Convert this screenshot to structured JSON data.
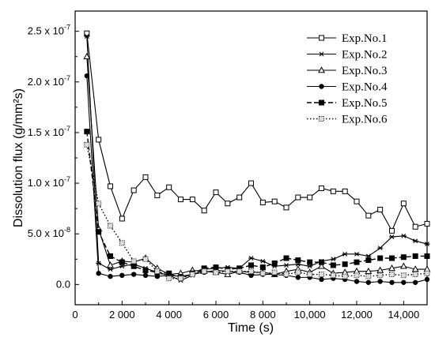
{
  "chart_data": {
    "type": "line",
    "xlabel": "Time (s)",
    "ylabel": "Dissolution flux (g/mm²s)",
    "xlim": [
      0,
      15000
    ],
    "ylim": [
      -2e-08,
      2.7e-07
    ],
    "x_ticks": [
      {
        "value": 0,
        "label": "0"
      },
      {
        "value": 2000,
        "label": "2 000"
      },
      {
        "value": 4000,
        "label": "4 000"
      },
      {
        "value": 6000,
        "label": "6 000"
      },
      {
        "value": 8000,
        "label": "8 000"
      },
      {
        "value": 10000,
        "label": "10,000"
      },
      {
        "value": 12000,
        "label": "12,000"
      },
      {
        "value": 14000,
        "label": "14,000"
      }
    ],
    "y_ticks": [
      {
        "value": 0,
        "mantissa": "0.0",
        "exp": ""
      },
      {
        "value": 5e-08,
        "mantissa": "5.0 x 10",
        "exp": "-8"
      },
      {
        "value": 1e-07,
        "mantissa": "1.0 x 10",
        "exp": "-7"
      },
      {
        "value": 1.5e-07,
        "mantissa": "1.5 x 10",
        "exp": "-7"
      },
      {
        "value": 2e-07,
        "mantissa": "2.0 x 10",
        "exp": "-7"
      },
      {
        "value": 2.5e-07,
        "mantissa": "2.5 x 10",
        "exp": "-7"
      }
    ],
    "grid": false,
    "legend_position": "top-right",
    "series": [
      {
        "name": "Exp.No.1",
        "marker": "open-square",
        "line": "solid",
        "x": [
          500,
          1000,
          1500,
          2000,
          2500,
          3000,
          3500,
          4000,
          4500,
          5000,
          5500,
          6000,
          6500,
          7000,
          7500,
          8000,
          8500,
          9000,
          9500,
          10000,
          10500,
          11000,
          11500,
          12000,
          12500,
          13000,
          13500,
          14000,
          14500,
          15000
        ],
        "y": [
          2.48e-07,
          1.43e-07,
          9.7e-08,
          6.5e-08,
          9.3e-08,
          1.06e-07,
          8.8e-08,
          9.6e-08,
          8.4e-08,
          8.4e-08,
          7.3e-08,
          9.1e-08,
          8e-08,
          8.6e-08,
          1e-07,
          8.1e-08,
          8.2e-08,
          7.6e-08,
          8.6e-08,
          8.6e-08,
          9.5e-08,
          9.2e-08,
          9.2e-08,
          8.2e-08,
          6.8e-08,
          7.4e-08,
          5.3e-08,
          8e-08,
          5.7e-08,
          6e-08
        ]
      },
      {
        "name": "Exp.No.2",
        "marker": "asterisk",
        "line": "solid",
        "x": [
          500,
          1000,
          1500,
          2000,
          2500,
          3000,
          3500,
          4000,
          4500,
          5000,
          5500,
          6000,
          6500,
          7000,
          7500,
          8000,
          8500,
          9000,
          9500,
          10000,
          10500,
          11000,
          11500,
          12000,
          12500,
          13000,
          13500,
          14000,
          14500,
          15000
        ],
        "y": [
          2.45e-07,
          2.1e-08,
          1.5e-08,
          1.8e-08,
          2e-08,
          1.6e-08,
          1.2e-08,
          9e-09,
          4e-09,
          9e-09,
          1.5e-08,
          1.6e-08,
          1.7e-08,
          1.6e-08,
          2.6e-08,
          2.3e-08,
          1.8e-08,
          1.9e-08,
          2e-08,
          1.8e-08,
          2.3e-08,
          2.5e-08,
          3e-08,
          3e-08,
          2.8e-08,
          3.6e-08,
          4.7e-08,
          4.8e-08,
          4.3e-08,
          4e-08
        ]
      },
      {
        "name": "Exp.No.3",
        "marker": "open-triangle",
        "line": "solid",
        "x": [
          500,
          1000,
          1500,
          2000,
          2500,
          3000,
          3500,
          4000,
          4500,
          5000,
          5500,
          6000,
          6500,
          7000,
          7500,
          8000,
          8500,
          9000,
          9500,
          10000,
          10500,
          11000,
          11500,
          12000,
          12500,
          13000,
          13500,
          14000,
          14500,
          15000
        ],
        "y": [
          2.25e-07,
          5.5e-08,
          1.9e-08,
          2.3e-08,
          2.2e-08,
          2.6e-08,
          1.6e-08,
          1e-08,
          1.1e-08,
          1.4e-08,
          1.3e-08,
          1.2e-08,
          1e-08,
          1.3e-08,
          1.2e-08,
          1.2e-08,
          1e-08,
          1.3e-08,
          1.5e-08,
          1.2e-08,
          1.8e-08,
          1.1e-08,
          1.2e-08,
          1.3e-08,
          1.3e-08,
          1.4e-08,
          1.6e-08,
          1.8e-08,
          1.5e-08,
          1.5e-08
        ]
      },
      {
        "name": "Exp.No.4",
        "marker": "filled-circle",
        "line": "solid",
        "x": [
          500,
          1000,
          1500,
          2000,
          2500,
          3000,
          3500,
          4000,
          4500,
          5000,
          5500,
          6000,
          6500,
          7000,
          7500,
          8000,
          8500,
          9000,
          9500,
          10000,
          10500,
          11000,
          11500,
          12000,
          12500,
          13000,
          13500,
          14000,
          14500,
          15000
        ],
        "y": [
          2.06e-07,
          1.1e-08,
          8e-09,
          9e-09,
          1e-08,
          9e-09,
          8e-09,
          9e-09,
          8e-09,
          1e-08,
          1.2e-08,
          1.4e-08,
          1.3e-08,
          1.2e-08,
          9e-09,
          1e-08,
          1e-08,
          9e-09,
          7e-09,
          7e-09,
          5e-09,
          6e-09,
          5e-09,
          3e-09,
          2e-09,
          3e-09,
          2e-09,
          2e-09,
          2e-09,
          5e-09
        ]
      },
      {
        "name": "Exp.No.5",
        "marker": "filled-square",
        "line": "dashed",
        "x": [
          500,
          1000,
          1500,
          2000,
          2500,
          3000,
          3500,
          4000,
          4500,
          5000,
          5500,
          6000,
          6500,
          7000,
          7500,
          8000,
          8500,
          9000,
          9500,
          10000,
          10500,
          11000,
          11500,
          12000,
          12500,
          13000,
          13500,
          14000,
          14500,
          15000
        ],
        "y": [
          1.51e-07,
          5.2e-08,
          2.8e-08,
          2.2e-08,
          1.8e-08,
          1.4e-08,
          1.2e-08,
          1.1e-08,
          6e-09,
          1.1e-08,
          1.6e-08,
          1.7e-08,
          1.5e-08,
          1.6e-08,
          1.9e-08,
          1.7e-08,
          2.1e-08,
          2.6e-08,
          2.4e-08,
          2.2e-08,
          2.2e-08,
          1.9e-08,
          2e-08,
          2.2e-08,
          2.4e-08,
          2.6e-08,
          2.6e-08,
          2.7e-08,
          2.8e-08,
          2.8e-08
        ]
      },
      {
        "name": "Exp.No.6",
        "marker": "dotted-square",
        "line": "dotted",
        "x": [
          500,
          1000,
          1500,
          2000,
          2500,
          3000,
          3500,
          4000,
          4500,
          5000,
          5500,
          6000,
          6500,
          7000,
          7500,
          8000,
          8500,
          9000,
          9500,
          10000,
          10500,
          11000,
          11500,
          12000,
          12500,
          13000,
          13500,
          14000,
          14500,
          15000
        ],
        "y": [
          1.38e-07,
          8e-08,
          5.8e-08,
          4.1e-08,
          2.3e-08,
          2.5e-08,
          1.3e-08,
          6e-09,
          6e-09,
          1e-08,
          1.3e-08,
          1.2e-08,
          1.3e-08,
          1.3e-08,
          1.3e-08,
          1.1e-08,
          1.2e-08,
          1e-08,
          1.2e-08,
          1e-08,
          1e-08,
          9e-09,
          8e-09,
          9e-09,
          8e-09,
          9e-09,
          1e-08,
          9e-09,
          1e-08,
          1.1e-08
        ]
      }
    ]
  }
}
